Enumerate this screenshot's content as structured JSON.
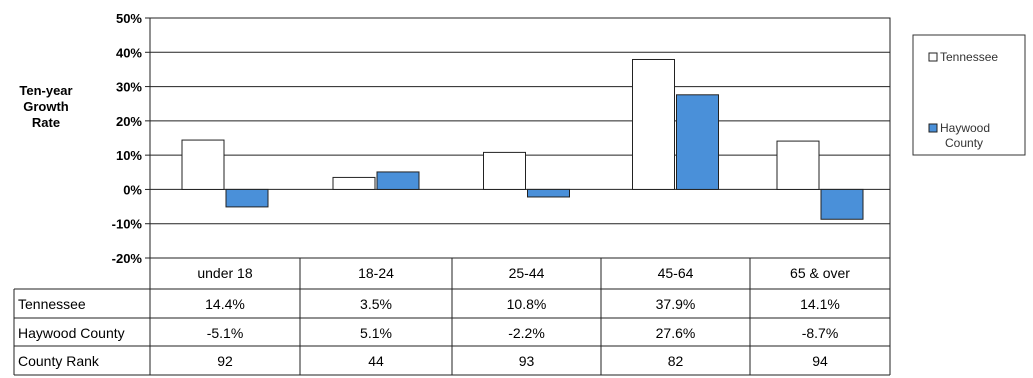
{
  "chart_data": {
    "type": "bar",
    "ylabel": "Ten-year Growth Rate",
    "ylabel_lines": [
      "Ten-year",
      "Growth",
      "Rate"
    ],
    "ylim": [
      -20,
      50
    ],
    "yticks": [
      -20,
      -10,
      0,
      10,
      20,
      30,
      40,
      50
    ],
    "ytick_labels": [
      "-20%",
      "-10%",
      "0%",
      "10%",
      "20%",
      "30%",
      "40%",
      "50%"
    ],
    "grid": true,
    "legend_position": "right",
    "categories": [
      "under 18",
      "18-24",
      "25-44",
      "45-64",
      "65 & over"
    ],
    "series": [
      {
        "name": "Tennessee",
        "color": "#ffffff",
        "values": [
          14.4,
          3.5,
          10.8,
          37.9,
          14.1
        ]
      },
      {
        "name": "Haywood County",
        "legend_lines": [
          "Haywood",
          "County"
        ],
        "color": "#4a90d9",
        "values": [
          -5.1,
          5.1,
          -2.2,
          27.6,
          -8.7
        ]
      }
    ],
    "table": {
      "rows": [
        {
          "label": "Tennessee",
          "values": [
            "14.4%",
            "3.5%",
            "10.8%",
            "37.9%",
            "14.1%"
          ]
        },
        {
          "label": "Haywood County",
          "values": [
            "-5.1%",
            "5.1%",
            "-2.2%",
            "27.6%",
            "-8.7%"
          ]
        },
        {
          "label": "County Rank",
          "values": [
            "92",
            "44",
            "93",
            "82",
            "94"
          ]
        }
      ]
    }
  }
}
